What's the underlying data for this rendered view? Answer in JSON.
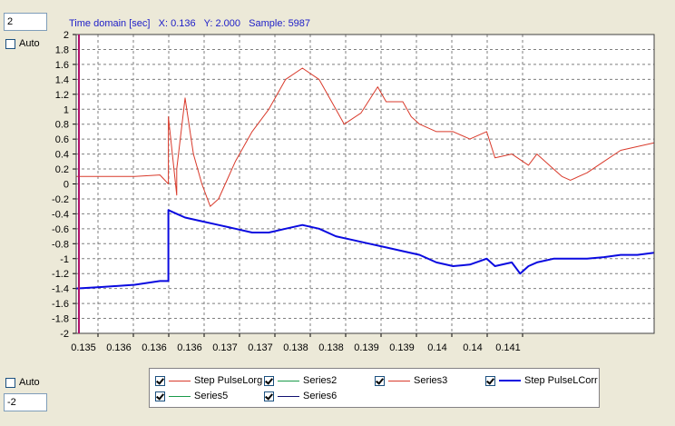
{
  "controls": {
    "y_max_value": "2",
    "y_min_value": "-2",
    "auto_top_label": "Auto",
    "auto_bottom_label": "Auto"
  },
  "status": {
    "axis": "Time domain [sec]",
    "x": "X: 0.136",
    "y": "Y: 2.000",
    "sample": "Sample: 5987"
  },
  "colors": {
    "red": "#d93a2b",
    "blue": "#0a0ae0",
    "green": "#1a9a4a",
    "navy": "#101070",
    "marker": "#b0106a",
    "grid": "#7f7f7f"
  },
  "legend": [
    {
      "label": "Step PulseLorg",
      "color": "#d93a2b",
      "thick": false
    },
    {
      "label": "Series2",
      "color": "#1a9a4a",
      "thick": false
    },
    {
      "label": "Series3",
      "color": "#d93a2b",
      "thick": false
    },
    {
      "label": "Step PulseLCorr",
      "color": "#0a0ae0",
      "thick": true
    },
    {
      "label": "Series5",
      "color": "#1a9a4a",
      "thick": false
    },
    {
      "label": "Series6",
      "color": "#101070",
      "thick": false
    }
  ],
  "chart_data": {
    "type": "line",
    "ylim": [
      -2,
      2
    ],
    "xlim": [
      0.1349,
      0.1418
    ],
    "y_ticks": [
      "2",
      "1.8",
      "1.6",
      "1.4",
      "1.2",
      "1",
      "0.8",
      "0.6",
      "0.4",
      "0.2",
      "0",
      "-0.2",
      "-0.4",
      "-0.6",
      "-0.8",
      "-1",
      "-1.2",
      "-1.4",
      "-1.6",
      "-1.8",
      "-2"
    ],
    "x_ticks": [
      "0.135",
      "0.136",
      "0.136",
      "0.136",
      "0.137",
      "0.137",
      "0.138",
      "0.138",
      "0.139",
      "0.139",
      "0.14",
      "0.14",
      "0.141"
    ],
    "grid": true,
    "series": [
      {
        "name": "Step PulseLorg",
        "x": [
          0.1349,
          0.1352,
          0.1356,
          0.1359,
          0.136,
          0.136,
          0.1361,
          0.1361,
          0.1362,
          0.1363,
          0.1364,
          0.1365,
          0.1366,
          0.1368,
          0.137,
          0.1372,
          0.1374,
          0.1376,
          0.1378,
          0.138,
          0.1381,
          0.1383,
          0.1385,
          0.1386,
          0.1388,
          0.1389,
          0.139,
          0.1392,
          0.1394,
          0.1396,
          0.1398,
          0.1399,
          0.1401,
          0.1403,
          0.1404,
          0.1406,
          0.1407,
          0.1408,
          0.141,
          0.1412,
          0.1414,
          0.1416,
          0.1418
        ],
        "y": [
          0.1,
          0.1,
          0.1,
          0.12,
          0.0,
          0.9,
          -0.15,
          0.2,
          1.15,
          0.4,
          0.0,
          -0.3,
          -0.2,
          0.3,
          0.7,
          1.0,
          1.4,
          1.55,
          1.4,
          1.0,
          0.8,
          0.95,
          1.3,
          1.1,
          1.1,
          0.9,
          0.8,
          0.7,
          0.7,
          0.6,
          0.7,
          0.35,
          0.4,
          0.25,
          0.4,
          0.2,
          0.1,
          0.05,
          0.15,
          0.3,
          0.45,
          0.5,
          0.55
        ]
      },
      {
        "name": "Step PulseLCorr",
        "x": [
          0.1349,
          0.1352,
          0.1356,
          0.1359,
          0.136,
          0.136,
          0.1361,
          0.1362,
          0.1364,
          0.1366,
          0.1368,
          0.137,
          0.1372,
          0.1374,
          0.1376,
          0.1378,
          0.138,
          0.1382,
          0.1384,
          0.1386,
          0.1388,
          0.139,
          0.1392,
          0.1394,
          0.1396,
          0.1398,
          0.1399,
          0.1401,
          0.1402,
          0.1403,
          0.1404,
          0.1406,
          0.1408,
          0.141,
          0.1412,
          0.1414,
          0.1416,
          0.1418
        ],
        "y": [
          -1.4,
          -1.38,
          -1.35,
          -1.3,
          -1.3,
          -0.35,
          -0.4,
          -0.45,
          -0.5,
          -0.55,
          -0.6,
          -0.65,
          -0.65,
          -0.6,
          -0.55,
          -0.6,
          -0.7,
          -0.75,
          -0.8,
          -0.85,
          -0.9,
          -0.95,
          -1.05,
          -1.1,
          -1.08,
          -1.0,
          -1.1,
          -1.05,
          -1.2,
          -1.1,
          -1.05,
          -1.0,
          -1.0,
          -1.0,
          -0.98,
          -0.95,
          -0.95,
          -0.92
        ]
      }
    ]
  }
}
